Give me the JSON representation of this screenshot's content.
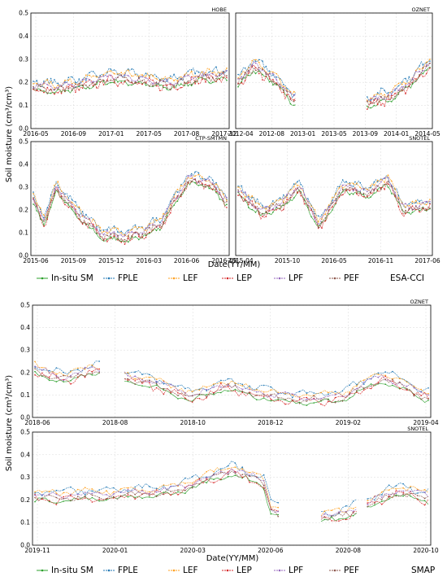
{
  "chart_data": {
    "type": "line",
    "series_names": [
      "In-situ SM",
      "FPLE",
      "LEF",
      "LEP",
      "LPF",
      "PEF"
    ],
    "colors": {
      "In-situ SM": "#2ca02c",
      "FPLE": "#1f77b4",
      "LEF": "#ff9f1c",
      "LEP": "#d62728",
      "LPF": "#9467bd",
      "PEF": "#8c564b"
    },
    "figures": [
      {
        "product_tag": "ESA-CCI",
        "xlabel": "Date(YY/MM)",
        "ylabel": "Soil moisture (cm³/cm³)",
        "panels": [
          {
            "name": "HOBE",
            "ylim": [
              0,
              0.5
            ],
            "yticks": [
              "0.0",
              "0.1",
              "0.2",
              "0.3",
              "0.4",
              "0.5"
            ],
            "xticks": [
              "2016-05",
              "2016-09",
              "2017-01",
              "2017-05",
              "2017-08",
              "2017-12"
            ],
            "profile": [
              [
                0,
                0.18
              ],
              [
                0.1,
                0.17
              ],
              [
                0.25,
                0.19
              ],
              [
                0.4,
                0.22
              ],
              [
                0.55,
                0.21
              ],
              [
                0.7,
                0.19
              ],
              [
                0.85,
                0.22
              ],
              [
                1,
                0.23
              ]
            ],
            "gaps": []
          },
          {
            "name": "OZNET",
            "ylim": [
              0,
              0.5
            ],
            "yticks": [
              "0.0",
              "0.1",
              "0.2",
              "0.3",
              "0.4",
              "0.5"
            ],
            "xticks": [
              "2012-04",
              "2012-08",
              "2013-01",
              "2013-05",
              "2013-09",
              "2014-01",
              "2014-05"
            ],
            "profile": [
              [
                0,
                0.2
              ],
              [
                0.08,
                0.27
              ],
              [
                0.18,
                0.22
              ],
              [
                0.28,
                0.13
              ],
              [
                0.67,
                0.11
              ],
              [
                0.8,
                0.14
              ],
              [
                0.9,
                0.2
              ],
              [
                1,
                0.28
              ]
            ],
            "gaps": [
              [
                0.3,
                0.67
              ]
            ]
          },
          {
            "name": "CTP-SMTMN",
            "ylim": [
              0,
              0.5
            ],
            "yticks": [
              "0.0",
              "0.1",
              "0.2",
              "0.3",
              "0.4",
              "0.5"
            ],
            "xticks": [
              "2015-06",
              "2015-09",
              "2015-12",
              "2016-03",
              "2016-06",
              "2016-09"
            ],
            "profile": [
              [
                0,
                0.24
              ],
              [
                0.06,
                0.15
              ],
              [
                0.12,
                0.3
              ],
              [
                0.2,
                0.21
              ],
              [
                0.35,
                0.09
              ],
              [
                0.5,
                0.08
              ],
              [
                0.65,
                0.13
              ],
              [
                0.8,
                0.33
              ],
              [
                0.9,
                0.32
              ],
              [
                1,
                0.24
              ]
            ],
            "gaps": []
          },
          {
            "name": "SNOTEL",
            "ylim": [
              0,
              0.5
            ],
            "yticks": [
              "0.0",
              "0.1",
              "0.2",
              "0.3",
              "0.4",
              "0.5"
            ],
            "xticks": [
              "2015-04",
              "2015-10",
              "2016-05",
              "2016-11",
              "2017-06"
            ],
            "profile": [
              [
                0,
                0.28
              ],
              [
                0.12,
                0.19
              ],
              [
                0.22,
                0.22
              ],
              [
                0.32,
                0.3
              ],
              [
                0.42,
                0.13
              ],
              [
                0.55,
                0.3
              ],
              [
                0.68,
                0.27
              ],
              [
                0.78,
                0.33
              ],
              [
                0.86,
                0.2
              ],
              [
                1,
                0.22
              ]
            ],
            "gaps": []
          }
        ]
      },
      {
        "product_tag": "SMAP",
        "xlabel": "Date(YY/MM)",
        "ylabel": "Soil moisture (cm³/cm³)",
        "panels": [
          {
            "name": "OZNET",
            "ylim": [
              0,
              0.5
            ],
            "yticks": [
              "0.0",
              "0.1",
              "0.2",
              "0.3",
              "0.4",
              "0.5"
            ],
            "xticks": [
              "2018-06",
              "2018-08",
              "2018-10",
              "2018-12",
              "2019-02",
              "2019-04"
            ],
            "profile": [
              [
                0,
                0.21
              ],
              [
                0.08,
                0.17
              ],
              [
                0.15,
                0.22
              ],
              [
                0.23,
                0.18
              ],
              [
                0.32,
                0.14
              ],
              [
                0.4,
                0.09
              ],
              [
                0.48,
                0.14
              ],
              [
                0.58,
                0.1
              ],
              [
                0.68,
                0.08
              ],
              [
                0.78,
                0.09
              ],
              [
                0.88,
                0.18
              ],
              [
                1,
                0.09
              ]
            ],
            "gaps": [
              [
                0.17,
                0.22
              ]
            ]
          },
          {
            "name": "SNOTEL",
            "ylim": [
              0,
              0.5
            ],
            "yticks": [
              "0.0",
              "0.1",
              "0.2",
              "0.3",
              "0.4",
              "0.5"
            ],
            "xticks": [
              "2019-11",
              "2020-01",
              "2020-03",
              "2020-06",
              "2020-08",
              "2020-10"
            ],
            "profile": [
              [
                0,
                0.21
              ],
              [
                0.2,
                0.22
              ],
              [
                0.35,
                0.24
              ],
              [
                0.5,
                0.33
              ],
              [
                0.58,
                0.28
              ],
              [
                0.6,
                0.16
              ],
              [
                0.68,
                0.11
              ],
              [
                0.78,
                0.13
              ],
              [
                0.85,
                0.18
              ],
              [
                0.92,
                0.24
              ],
              [
                1,
                0.21
              ]
            ],
            "gaps": [
              [
                0.62,
                0.72
              ],
              [
                0.82,
                0.84
              ]
            ]
          }
        ]
      }
    ]
  }
}
